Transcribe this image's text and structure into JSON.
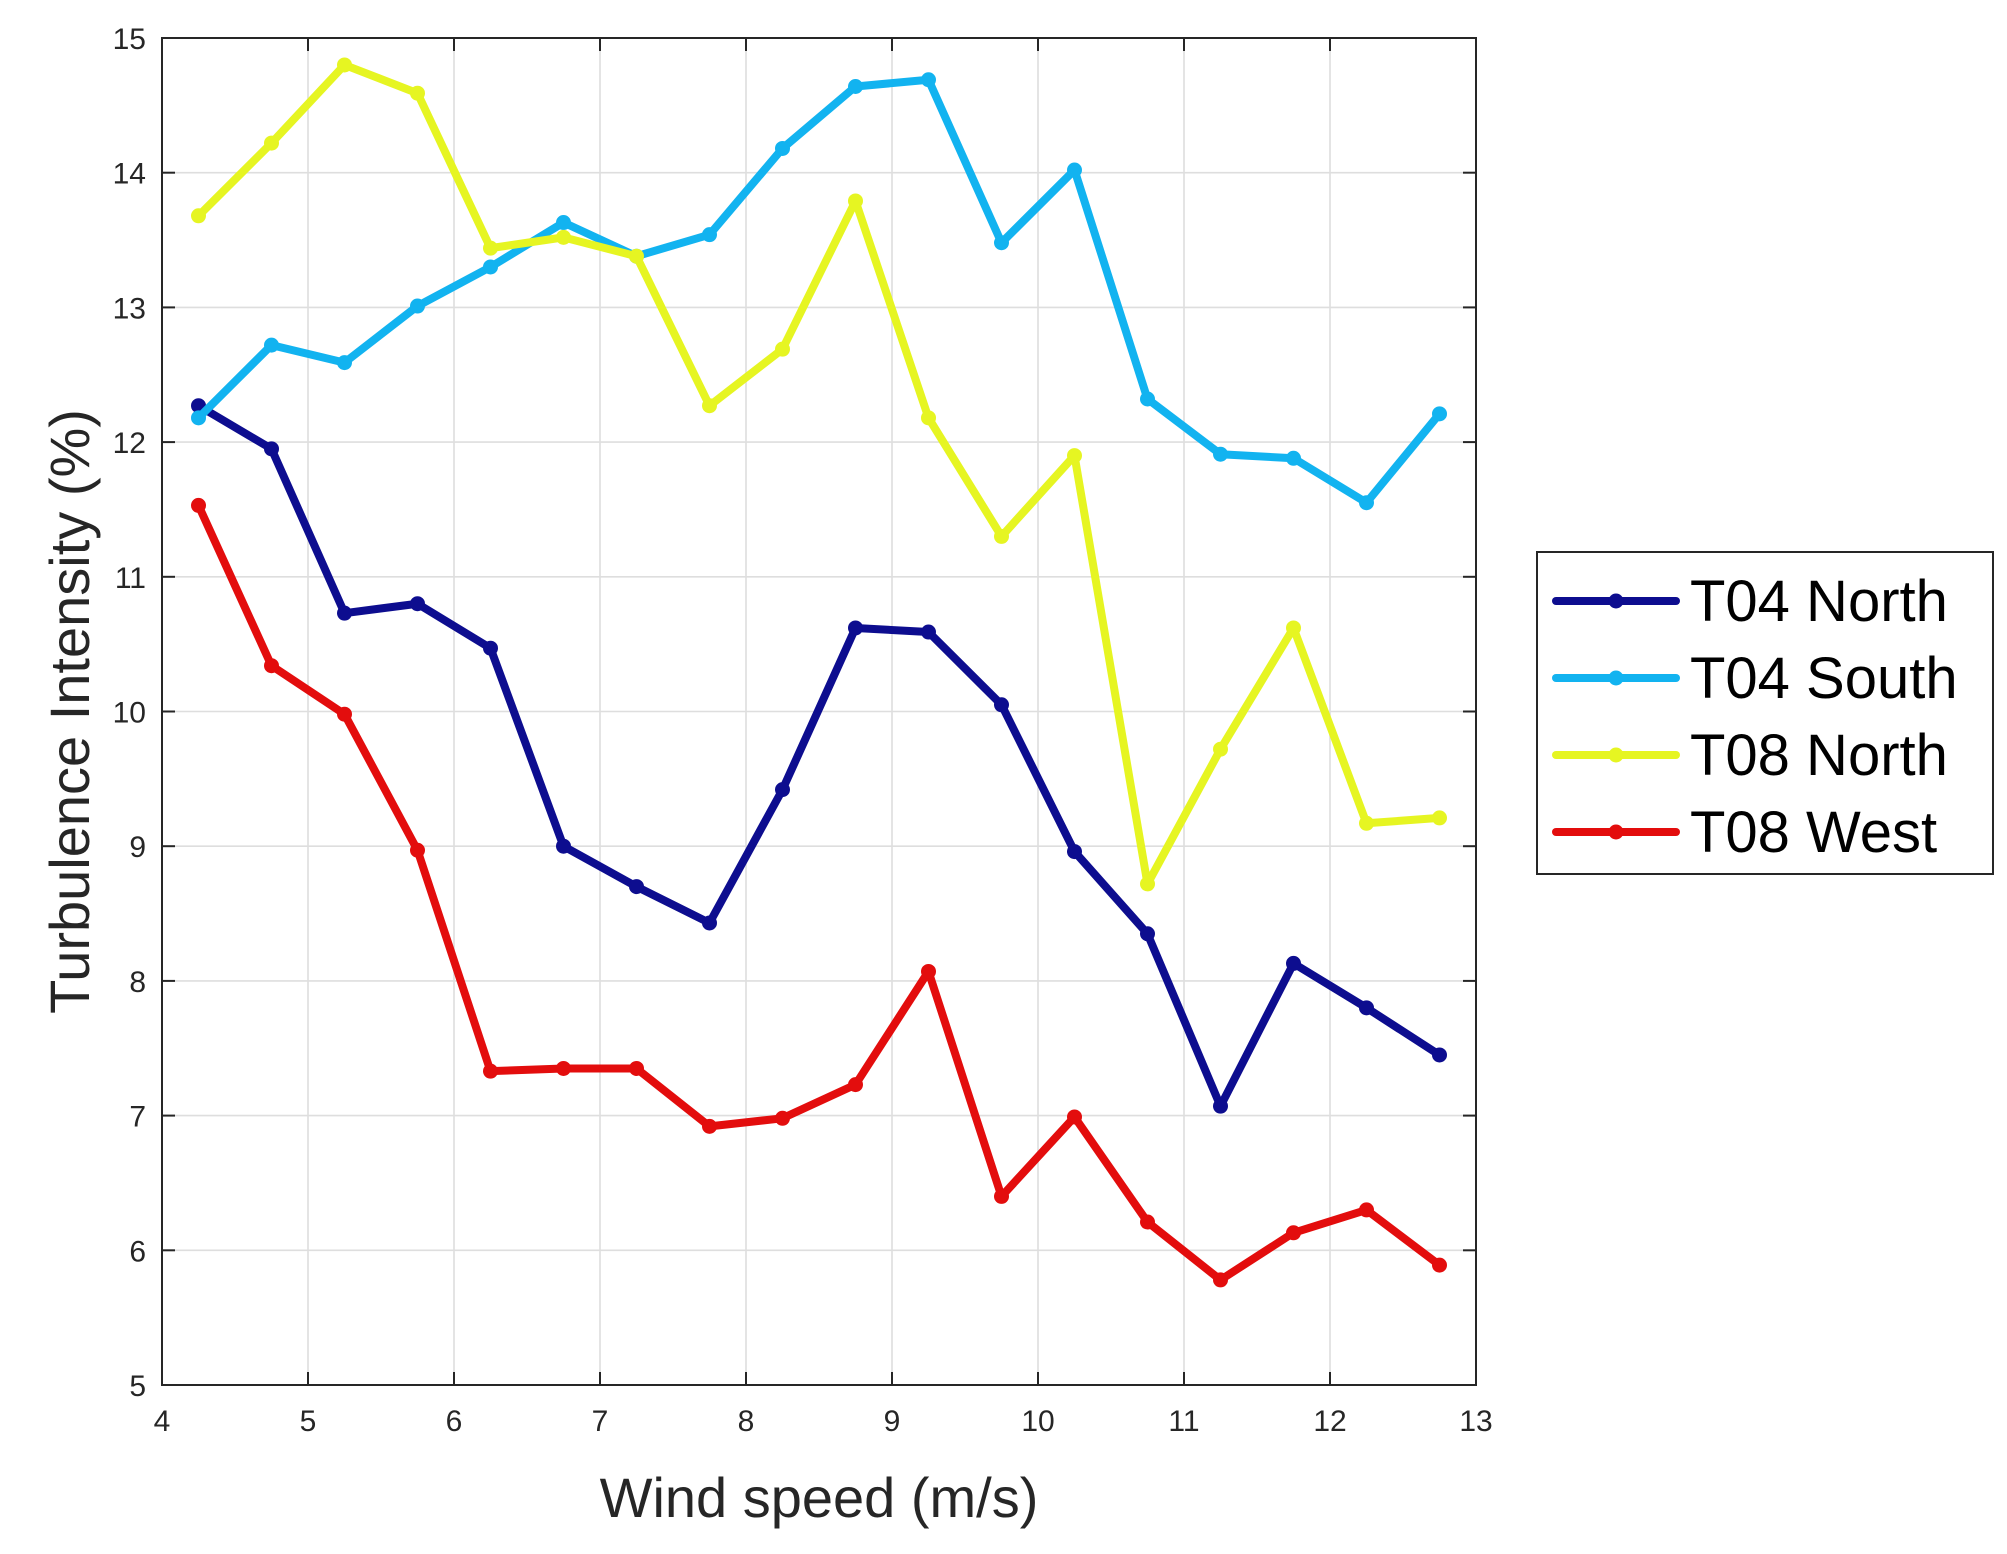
{
  "chart_data": {
    "type": "line",
    "title": "",
    "xlabel": "Wind speed (m/s)",
    "ylabel": "Turbulence Intensity (%)",
    "xlim": [
      4,
      13
    ],
    "ylim": [
      5,
      15
    ],
    "xticks": [
      4,
      5,
      6,
      7,
      8,
      9,
      10,
      11,
      12,
      13
    ],
    "yticks": [
      5,
      6,
      7,
      8,
      9,
      10,
      11,
      12,
      13,
      14,
      15
    ],
    "grid": true,
    "legend_position": "outside-right",
    "x": [
      4.25,
      4.75,
      5.25,
      5.75,
      6.25,
      6.75,
      7.25,
      7.75,
      8.25,
      8.75,
      9.25,
      9.75,
      10.25,
      10.75,
      11.25,
      11.75,
      12.25,
      12.75
    ],
    "series": [
      {
        "name": "T04 North",
        "color": "#0d0d8f",
        "values": [
          12.27,
          11.95,
          10.73,
          10.8,
          10.47,
          9.0,
          8.7,
          8.43,
          9.42,
          10.62,
          10.59,
          10.05,
          8.96,
          8.35,
          7.07,
          8.13,
          7.8,
          7.45
        ]
      },
      {
        "name": "T04 South",
        "color": "#12b3f0",
        "values": [
          12.18,
          12.72,
          12.59,
          13.01,
          13.3,
          13.63,
          13.38,
          13.54,
          14.18,
          14.64,
          14.69,
          13.48,
          14.02,
          12.32,
          11.91,
          11.88,
          11.55,
          12.21
        ]
      },
      {
        "name": "T08 North",
        "color": "#e6f522",
        "values": [
          13.68,
          14.22,
          14.8,
          14.59,
          13.44,
          13.52,
          13.38,
          12.27,
          12.69,
          13.79,
          12.18,
          11.3,
          11.9,
          8.72,
          9.72,
          10.62,
          9.17,
          9.21
        ]
      },
      {
        "name": "T08 West",
        "color": "#e30d0d",
        "values": [
          11.53,
          10.34,
          9.98,
          8.97,
          7.33,
          7.35,
          7.35,
          6.92,
          6.98,
          7.23,
          8.07,
          6.4,
          6.99,
          6.21,
          5.78,
          6.13,
          6.3,
          5.89
        ]
      }
    ]
  }
}
